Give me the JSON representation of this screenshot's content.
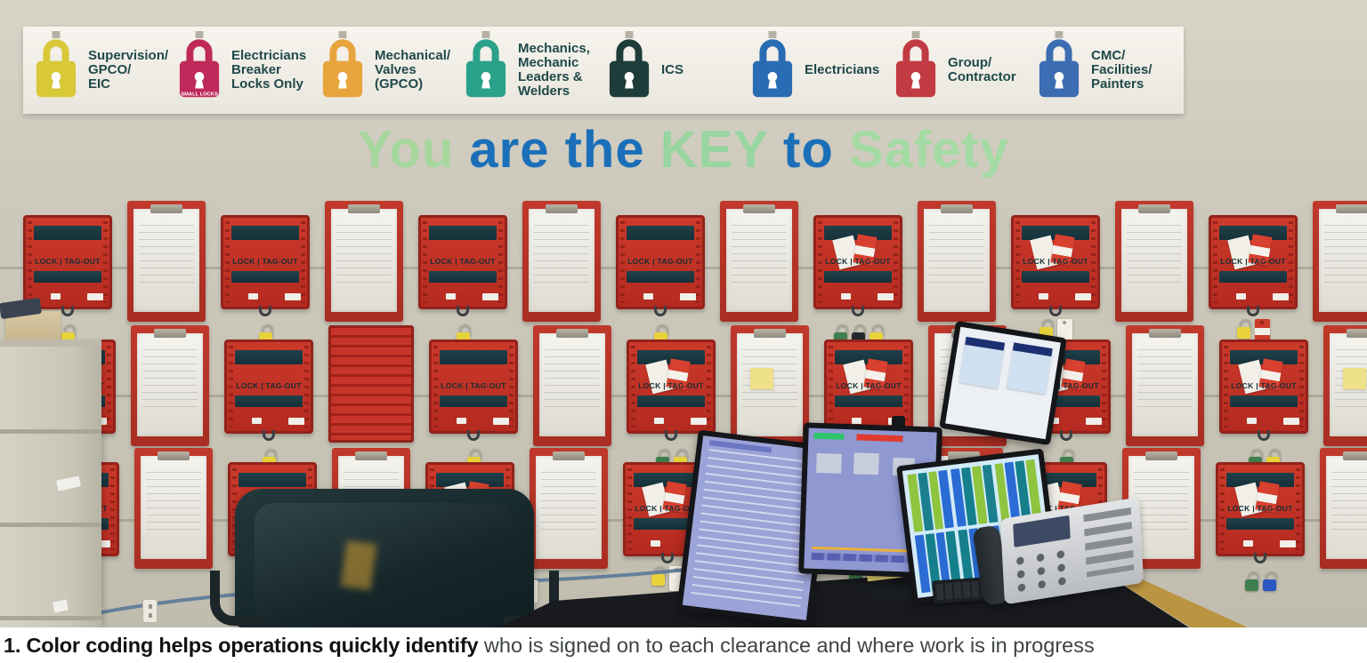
{
  "caption": {
    "bold": "1. Color coding helps operations quickly identify",
    "rest": " who is signed on to each clearance and where work is in progress"
  },
  "banner": {
    "slogan": [
      {
        "text": "You ",
        "color": "#a6d79d"
      },
      {
        "text": "are the ",
        "color": "#1a6fb8"
      },
      {
        "text": "KEY ",
        "color": "#98d5a0"
      },
      {
        "text": "to ",
        "color": "#1a6fb8"
      },
      {
        "text": "Safety",
        "color": "#a4dba4"
      }
    ],
    "locks": [
      {
        "label": "Supervision/\nGPCO/\nEIC",
        "color": "#d9c838"
      },
      {
        "label": "Electricians\nBreaker\nLocks Only",
        "color": "#bf2a5a",
        "sub": "SMALL LOCKS"
      },
      {
        "label": "Mechanical/\nValves\n(GPCO)",
        "color": "#e8a43c"
      },
      {
        "label": "Mechanics,\nMechanic\nLeaders &\nWelders",
        "color": "#2aa189"
      },
      {
        "label": "ICS",
        "color": "#1e3c3a"
      },
      {
        "label": "Electricians",
        "color": "#2a6cb4"
      },
      {
        "label": "Group/\nContractor",
        "color": "#c23a42"
      },
      {
        "label": "CMC/\nFacilities/\nPainters",
        "color": "#3c6cb2"
      }
    ]
  },
  "wall": {
    "lockbox_label": "LOCK | TAG-OUT",
    "rows": [
      [
        {
          "t": "b",
          "h": [
            "y"
          ]
        },
        {
          "t": "c"
        },
        {
          "t": "b",
          "h": [
            "y"
          ]
        },
        {
          "t": "c"
        },
        {
          "t": "b",
          "h": [
            "y"
          ]
        },
        {
          "t": "c"
        },
        {
          "t": "b",
          "h": [
            "y"
          ]
        },
        {
          "t": "c"
        },
        {
          "t": "b",
          "tags": true,
          "h": [
            "g",
            "k",
            "y"
          ]
        },
        {
          "t": "c"
        },
        {
          "t": "b",
          "tags": true,
          "h": [
            "y",
            "w"
          ]
        },
        {
          "t": "c"
        },
        {
          "t": "b",
          "tags": true,
          "h": [
            "y",
            "r"
          ]
        },
        {
          "t": "c"
        }
      ],
      [
        {
          "t": "b",
          "tags": true
        },
        {
          "t": "c"
        },
        {
          "t": "b",
          "h": [
            "y"
          ]
        },
        {
          "t": "s"
        },
        {
          "t": "b",
          "h": [
            "y"
          ]
        },
        {
          "t": "c"
        },
        {
          "t": "b",
          "tags": true,
          "h": [
            "g",
            "y"
          ]
        },
        {
          "t": "c",
          "sticky": true
        },
        {
          "t": "b",
          "tags": true,
          "h": [
            "g",
            "y",
            "r"
          ]
        },
        {
          "t": "c"
        },
        {
          "t": "b",
          "tags": true,
          "h": [
            "g"
          ]
        },
        {
          "t": "c"
        },
        {
          "t": "b",
          "tags": true,
          "h": [
            "g",
            "y"
          ]
        },
        {
          "t": "c",
          "sticky": true
        }
      ],
      [
        {
          "t": "b"
        },
        {
          "t": "c"
        },
        {
          "t": "b",
          "h": [
            "y"
          ]
        },
        {
          "t": "c"
        },
        {
          "t": "b",
          "tags": true,
          "h": [
            "b",
            "y"
          ]
        },
        {
          "t": "c"
        },
        {
          "t": "b",
          "tags": true,
          "h": [
            "y",
            "w"
          ]
        },
        {
          "t": "c"
        },
        {
          "t": "b",
          "tags": true,
          "h": [
            "g",
            "w"
          ]
        },
        {
          "t": "c"
        },
        {
          "t": "b",
          "tags": true,
          "h": [
            "g",
            "y"
          ]
        },
        {
          "t": "c"
        },
        {
          "t": "b",
          "tags": true,
          "h": [
            "g",
            "b"
          ]
        },
        {
          "t": "c"
        }
      ]
    ]
  },
  "palette": {
    "wall": "#cbc7b9",
    "station_red": "#c0332a",
    "window_teal": "#1c3a42",
    "hang_yellow": "#e8d23a",
    "hang_green": "#3f7f4f",
    "hang_blue": "#2b57c4",
    "hang_dark": "#23282c",
    "tag_white": "#f2f0e6",
    "tag_red": "#cd3b2a"
  }
}
